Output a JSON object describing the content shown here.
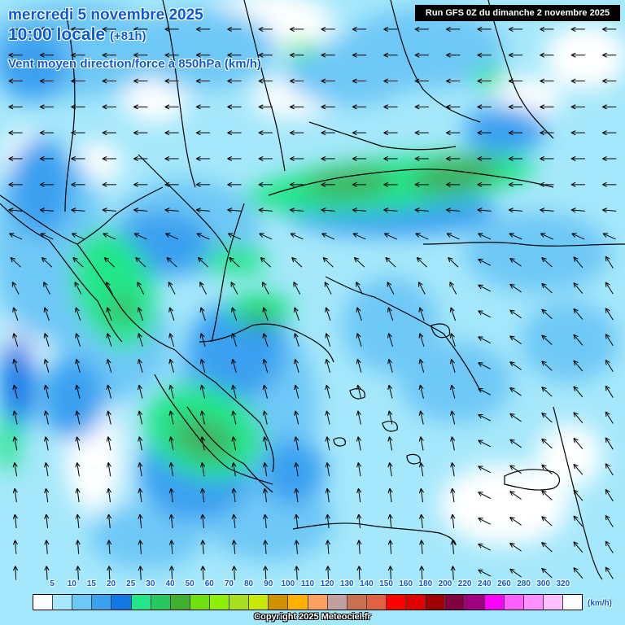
{
  "header": {
    "date": "mercredi 5 novembre 2025",
    "time": "10:00 locale",
    "lead": "(+81h)",
    "parameter": "Vent moyen direction/force à 850hPa (km/h)",
    "run": "Run GFS 0Z du dimanche 2 novembre 2025"
  },
  "legend": {
    "labels": [
      "5",
      "10",
      "15",
      "20",
      "25",
      "30",
      "40",
      "50",
      "60",
      "70",
      "80",
      "90",
      "100",
      "110",
      "120",
      "130",
      "140",
      "150",
      "160",
      "180",
      "200",
      "220",
      "240",
      "260",
      "280",
      "300",
      "320"
    ],
    "colors": [
      "#ffffff",
      "#a6e8fb",
      "#6ec8f6",
      "#3aa0f0",
      "#1278e6",
      "#22e68a",
      "#28c860",
      "#40b030",
      "#70e010",
      "#8cf000",
      "#a8e020",
      "#c8e800",
      "#d09000",
      "#ffb000",
      "#ffa060",
      "#c0a0a0",
      "#c87050",
      "#e06040",
      "#ff0000",
      "#e00000",
      "#a00000",
      "#800040",
      "#a00080",
      "#ff00ff",
      "#ff60ff",
      "#ff90ff",
      "#ffc0ff",
      "#ffffff"
    ],
    "unit": "(km/h)"
  },
  "copyright": "Copyright 2025 Meteociel.fr",
  "map_colors": {
    "light": "#a6e8fb",
    "medium": "#6ec8f6",
    "strong": "#3aa0f0",
    "stronger": "#1278e6",
    "green": "#22e68a",
    "darkgreen": "#40b060",
    "calm": "#ffffff",
    "border": "#000000",
    "arrow": "#000000"
  },
  "wind_field": {
    "description_icon": "wind-arrow-icon",
    "rows": 22,
    "cols": 20
  }
}
